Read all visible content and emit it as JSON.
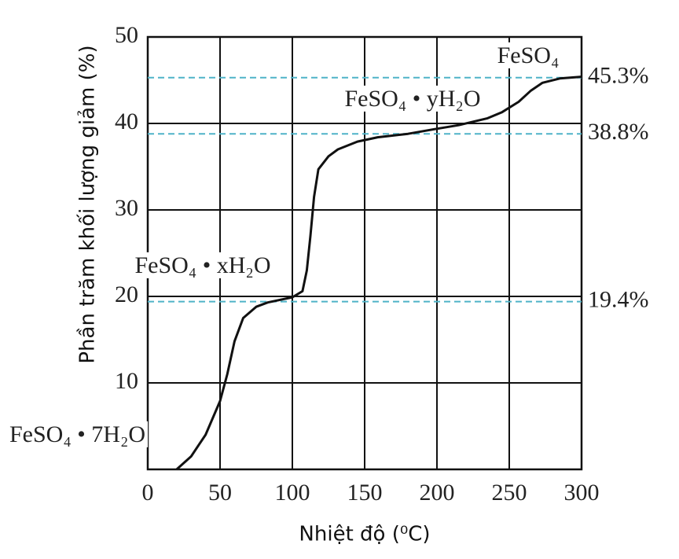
{
  "chart_data": {
    "type": "line",
    "x_label": "Nhiệt độ (⁰C)",
    "y_label": "Phần trăm khối lượng giảm (%)",
    "x": [
      20,
      30,
      40,
      50,
      55,
      60,
      66,
      75,
      83,
      100,
      107,
      110,
      112.5,
      115,
      118,
      125,
      131.5,
      145,
      159,
      180,
      197,
      215,
      235,
      245,
      256.5,
      265,
      273,
      285,
      300
    ],
    "series": [
      {
        "name": "FeSO₄·7H₂O",
        "color": "#111111",
        "values": [
          0,
          1.5,
          4,
          7.9,
          11,
          14.8,
          17.5,
          18.8,
          19.3,
          19.9,
          20.6,
          23,
          27,
          31.5,
          34.7,
          36.2,
          37,
          37.9,
          38.4,
          38.8,
          39.3,
          39.8,
          40.6,
          41.3,
          42.5,
          43.8,
          44.7,
          45.2,
          45.4
        ]
      }
    ],
    "reference_lines": [
      {
        "value": 45.3,
        "label": "45.3%"
      },
      {
        "value": 38.8,
        "label": "38.8%"
      },
      {
        "value": 19.4,
        "label": "19.4%"
      }
    ],
    "reference_color": "#4fb3c8",
    "annotations": [
      "FeSO₄",
      "FeSO₄ • yH₂O",
      "FeSO₄ • xH₂O",
      "FeSO₄ • 7H₂O"
    ],
    "xlim": [
      0,
      300
    ],
    "xticks": [
      0,
      50,
      100,
      150,
      200,
      250,
      300
    ],
    "ylim": [
      0,
      50
    ],
    "yticks": [
      10,
      20,
      30,
      40,
      50
    ],
    "grid": true
  }
}
